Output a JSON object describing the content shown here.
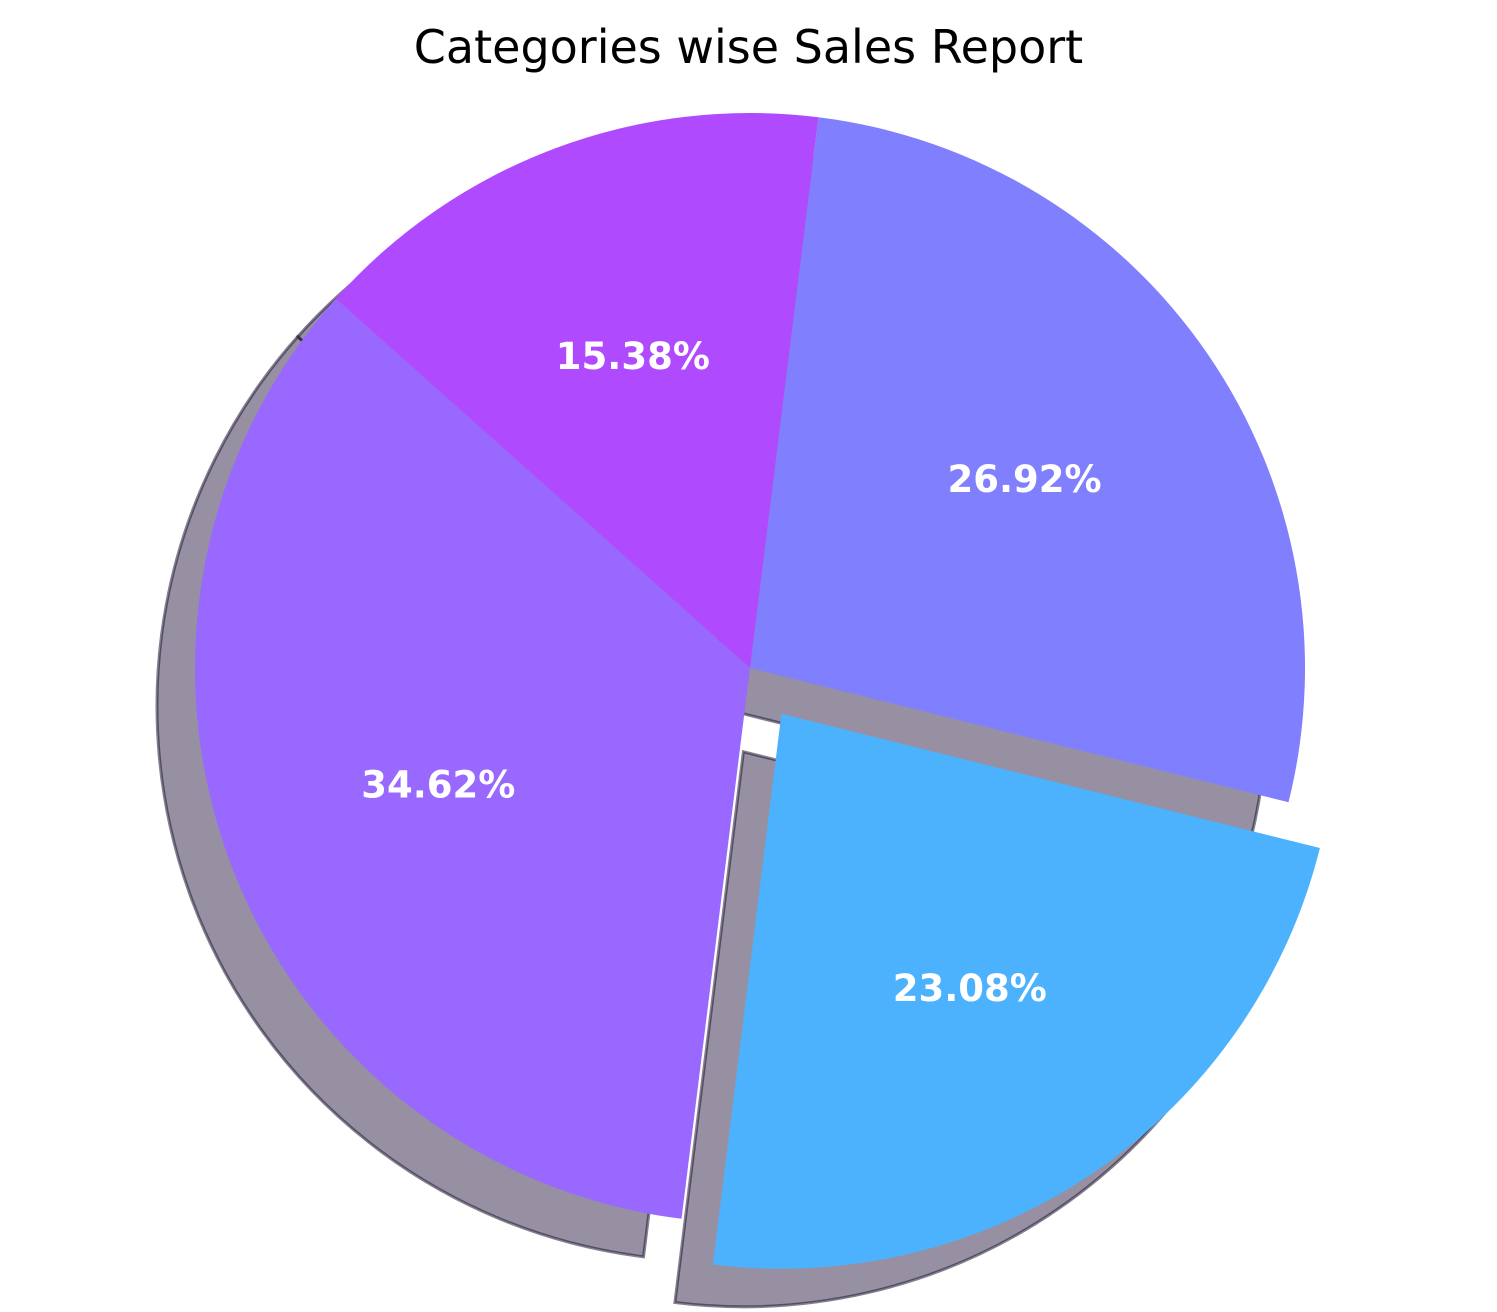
{
  "chart_data": {
    "type": "pie",
    "title": "Categories wise Sales Report",
    "slices": [
      {
        "value": 26.92,
        "label": "26.92%",
        "color": "#807ffe",
        "explode": 0
      },
      {
        "value": 15.38,
        "label": "15.38%",
        "color": "#b04afe",
        "explode": 0
      },
      {
        "value": 34.62,
        "label": "34.62%",
        "color": "#9968fe",
        "explode": 0
      },
      {
        "value": 23.08,
        "label": "23.08%",
        "color": "#4cb2fe",
        "explode": 0.1
      }
    ],
    "start_angle_deg": -14,
    "direction": "counterclockwise",
    "shadow": true
  }
}
